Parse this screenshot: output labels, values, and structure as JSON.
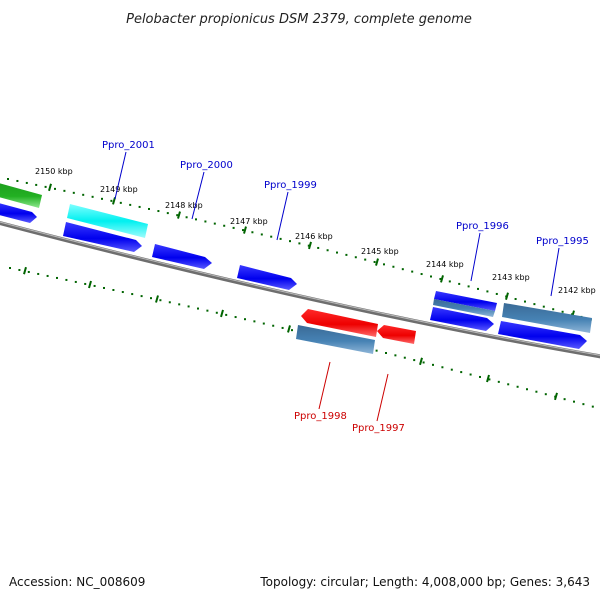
{
  "title": "Pelobacter propionicus DSM 2379, complete genome",
  "footer": {
    "accession": "Accession: NC_008609",
    "topology": "Topology: circular; Length: 4,008,000 bp; Genes: 3,643"
  },
  "colors": {
    "backbone": "#808080",
    "tick": "#006400",
    "forward_gene": "#0000ee",
    "reverse_gene": "#ee0000",
    "forward_label": "#0000cc",
    "reverse_label": "#cc0000",
    "steelblue_gene": "#4682b4",
    "cyan_gene": "#00ffff",
    "green_gene": "#22b022"
  },
  "kbp_ticks": [
    "2150 kbp",
    "2149 kbp",
    "2148 kbp",
    "2147 kbp",
    "2146 kbp",
    "2145 kbp",
    "2144 kbp",
    "2143 kbp",
    "2142 kbp"
  ],
  "gene_labels": [
    {
      "name": "Ppro_2001",
      "strand": "forward"
    },
    {
      "name": "Ppro_2000",
      "strand": "forward"
    },
    {
      "name": "Ppro_1999",
      "strand": "forward"
    },
    {
      "name": "Ppro_1996",
      "strand": "forward"
    },
    {
      "name": "Ppro_1995",
      "strand": "forward"
    },
    {
      "name": "Ppro_1998",
      "strand": "reverse"
    },
    {
      "name": "Ppro_1997",
      "strand": "reverse"
    }
  ]
}
